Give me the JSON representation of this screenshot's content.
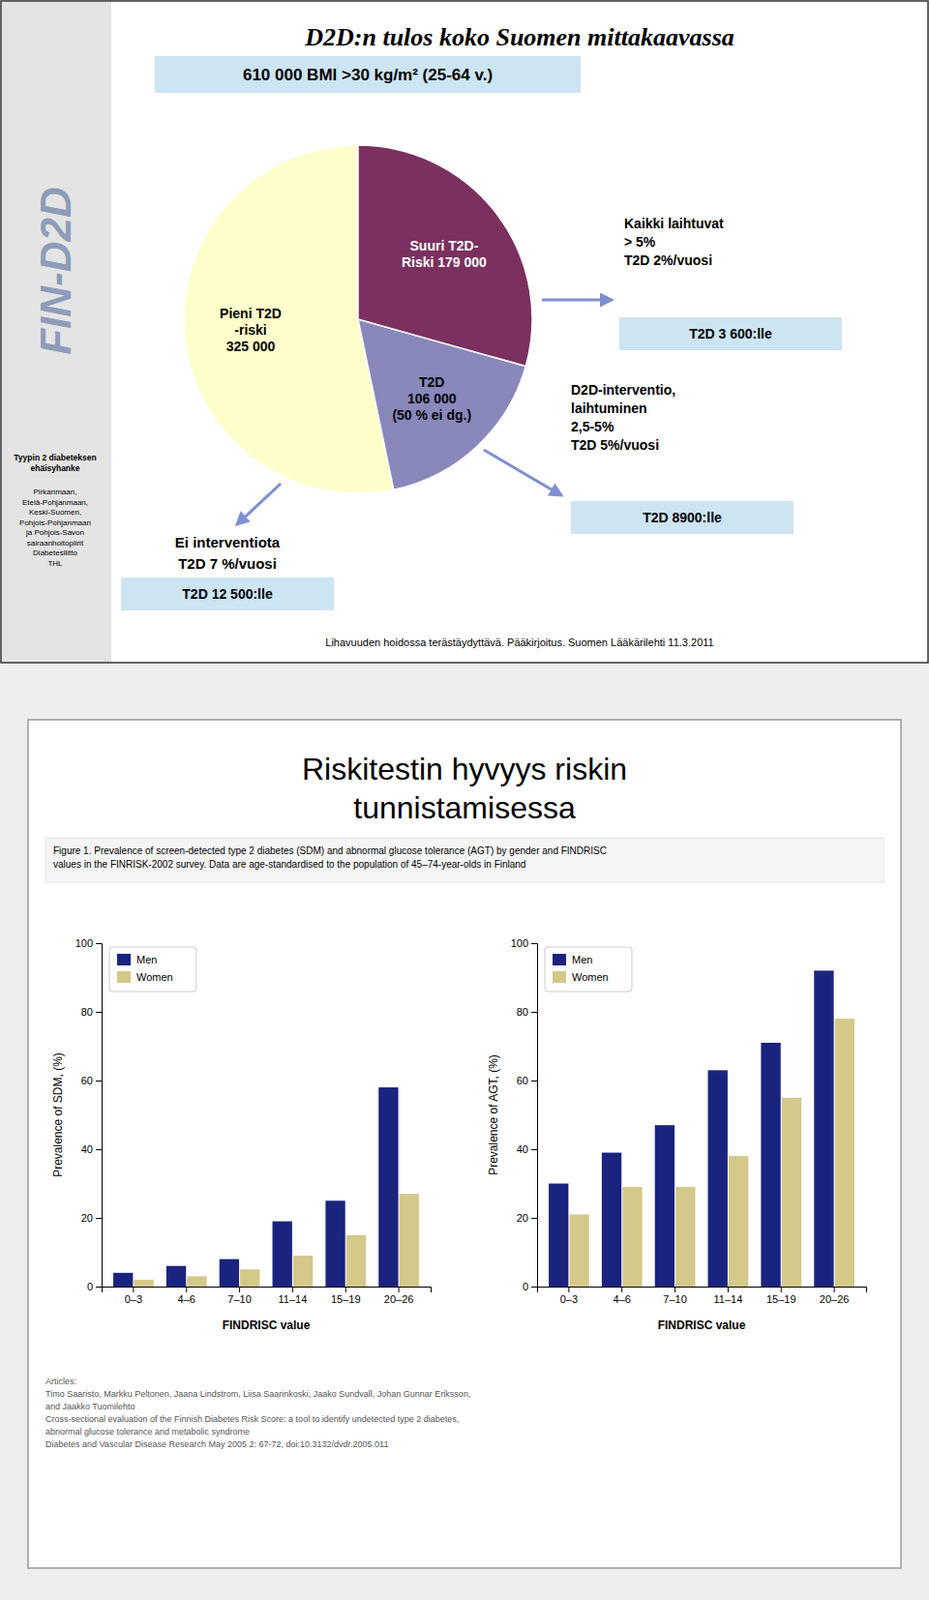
{
  "chart_data": [
    {
      "type": "pie",
      "title": "D2D:n tulos koko Suomen mittakaavassa",
      "subtitle": "610 000 BMI >30 kg/m² (25-64 v.)",
      "values": [
        325000,
        106000,
        179000
      ],
      "colors": [
        "#ffffcc",
        "#8888bb",
        "#7b3060"
      ],
      "data_labels": true,
      "value_labels": [
        "Pieni T2D\n-riski\n325 000",
        "T2D\n106 000\n(50 % ei dg.)",
        "Suuri T2D-\nRiski 179 000"
      ],
      "annotations": [
        "FIN-D2D",
        "Tyypin 2 diabeteksen\nehäisyhanke",
        "Pirkanmaan,\nEtelä-Pohjanmaan,\nKeski-Suomen,\nPohjois-Pohjanmaan\nja Pohjois-Savon\nsairaanhoitopiirit\nDiabetesliitto\nTHL",
        "Kaikki laihtuvat\n> 5%\nT2D 2%/vuosi",
        "T2D 3 600:lle",
        "D2D-interventio,\nlaihtuminen\n2,5-5%\nT2D 5%/vuosi",
        "T2D 8900:lle",
        "Ei interventiota",
        "T2D 7 %/vuosi",
        "T2D 12 500:lle",
        "Lihavuuden hoidossa terästäydyttävä. Pääkirjoitus. Suomen Lääkärilehti 11.3.2011"
      ]
    },
    {
      "type": "bar",
      "title": "Riskitestin hyvyys riskin\ntunnistamisessa",
      "subtitle": "Figure 1.  Prevalence of screen-detected type 2 diabetes (SDM) and abnormal glucose tolerance (AGT) by gender and FINDRISC\nvalues in the FINRISK-2002 survey. Data are age-standardised to the population of 45–74-year-olds in Finland",
      "annotations": [
        "Articles:\nTimo Saaristo, Markku Peltonen, Jaana Lindstrom, Liisa Saarinkoski, Jaako Sundvall, Johan Gunnar Eriksson,\nand Jaakko Tuomilehto\nCross-sectional evaluation of the Finnish Diabetes Risk Score: a tool to identify undetected type 2 diabetes,\nabnormal glucose tolerance and metabolic syndrome\nDiabetes and Vascular Disease Research May 2005 2: 67-72, doi:10.3132/dvdr.2005.011"
      ],
      "categories": [
        "0–3",
        "4–6",
        "7–10",
        "11–14",
        "15–19",
        "20–26"
      ],
      "series": [
        {
          "name": "Men",
          "color": "#1a237e",
          "values": [
            4,
            6,
            8,
            19,
            25,
            58
          ]
        },
        {
          "name": "Women",
          "color": "#d4c88a",
          "values": [
            2,
            3,
            5,
            9,
            15,
            27
          ]
        }
      ],
      "xlabel": "FINDRISC value",
      "ylabel": "Prevalence of SDM, (%)",
      "ylim": [
        0,
        100
      ],
      "yticks": [
        0,
        20,
        40,
        60,
        80,
        100
      ],
      "legend": "upper left",
      "grid": false
    },
    {
      "type": "bar",
      "categories": [
        "0–3",
        "4–6",
        "7–10",
        "11–14",
        "15–19",
        "20–26"
      ],
      "series": [
        {
          "name": "Men",
          "color": "#1a237e",
          "values": [
            30,
            39,
            47,
            63,
            71,
            92
          ]
        },
        {
          "name": "Women",
          "color": "#d4c88a",
          "values": [
            21,
            29,
            29,
            38,
            55,
            78
          ]
        }
      ],
      "xlabel": "FINDRISC value",
      "ylabel": "Prevalence of AGT, (%)",
      "ylim": [
        0,
        100
      ],
      "yticks": [
        0,
        20,
        40,
        60,
        80,
        100
      ],
      "legend": "upper left",
      "grid": false
    }
  ]
}
